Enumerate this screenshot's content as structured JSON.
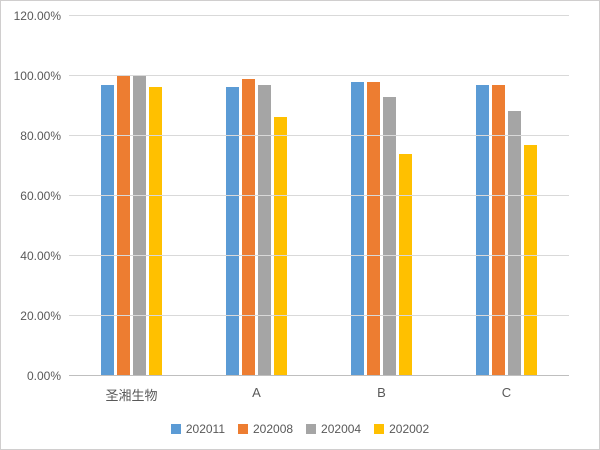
{
  "chart_data": {
    "type": "bar",
    "title": "",
    "xlabel": "",
    "ylabel": "",
    "categories": [
      "圣湘生物",
      "A",
      "B",
      "C"
    ],
    "series": [
      {
        "name": "202011",
        "color": "#5B9BD5",
        "values": [
          97.0,
          96.5,
          98.0,
          97.0
        ]
      },
      {
        "name": "202008",
        "color": "#ED7D31",
        "values": [
          100.0,
          99.0,
          98.0,
          97.0
        ]
      },
      {
        "name": "202004",
        "color": "#A5A5A5",
        "values": [
          100.0,
          97.0,
          93.0,
          88.5
        ]
      },
      {
        "name": "202002",
        "color": "#FFC000",
        "values": [
          96.5,
          86.5,
          74.0,
          77.0
        ]
      }
    ],
    "ylim": [
      0,
      120
    ],
    "ytick_values": [
      0,
      20,
      40,
      60,
      80,
      100,
      120
    ],
    "yticks": [
      "0.00%",
      "20.00%",
      "40.00%",
      "60.00%",
      "80.00%",
      "100.00%",
      "120.00%"
    ],
    "grid": true,
    "legend_position": "bottom",
    "colors": {
      "gridline": "#d9d9d9",
      "axis_line": "#bfbfbf",
      "text": "#595959",
      "background": "#ffffff",
      "border": "#d0cece"
    }
  }
}
